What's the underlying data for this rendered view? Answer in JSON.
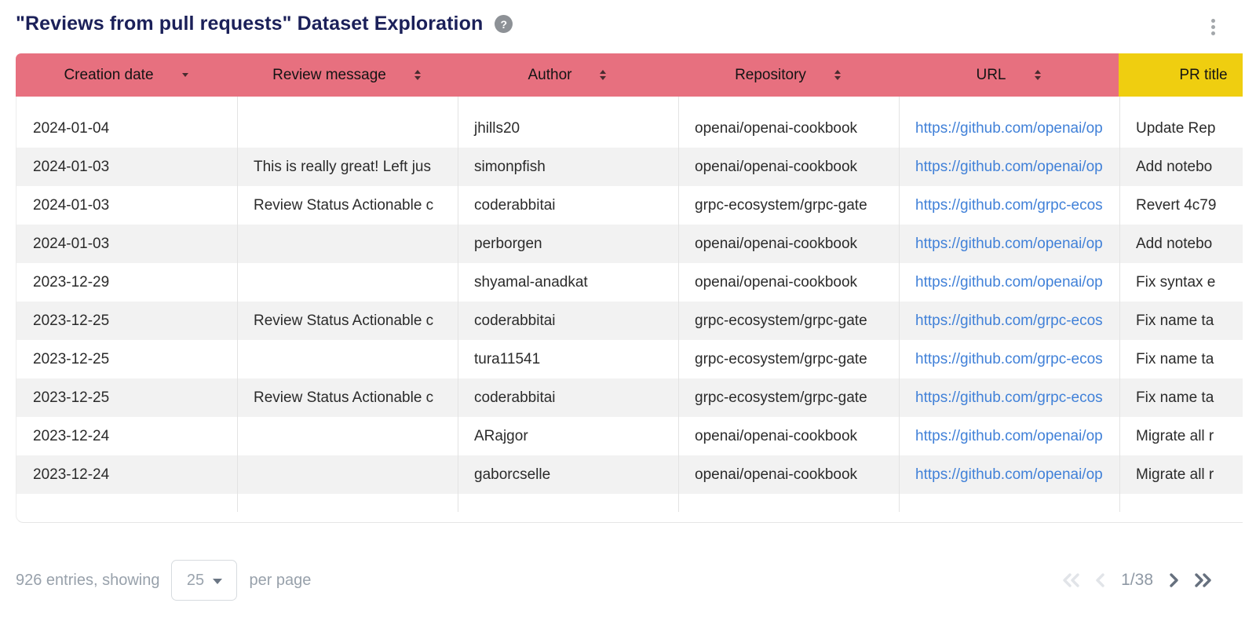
{
  "page": {
    "title": "\"Reviews from pull requests\" Dataset Exploration",
    "help_icon_glyph": "?"
  },
  "colors": {
    "header_pink": "#e7707f",
    "header_yellow": "#efce10",
    "title_navy": "#1b2059",
    "link_blue": "#4181d8",
    "alt_row_gray": "#f2f2f2"
  },
  "table": {
    "columns": [
      {
        "label": "Creation date",
        "sort": "desc"
      },
      {
        "label": "Review message",
        "sort": "both"
      },
      {
        "label": "Author",
        "sort": "both"
      },
      {
        "label": "Repository",
        "sort": "both"
      },
      {
        "label": "URL",
        "sort": "both"
      },
      {
        "label": "PR title",
        "sort": "both"
      }
    ],
    "rows": [
      {
        "date": "2024-01-04",
        "message": "",
        "author": "jhills20",
        "repo": "openai/openai-cookbook",
        "url": "https://github.com/openai/op",
        "pr_title": "Update Rep"
      },
      {
        "date": "2024-01-03",
        "message": "This is really great! Left jus",
        "author": "simonpfish",
        "repo": "openai/openai-cookbook",
        "url": "https://github.com/openai/op",
        "pr_title": "Add notebo"
      },
      {
        "date": "2024-01-03",
        "message": "Review Status Actionable c",
        "author": "coderabbitai",
        "repo": "grpc-ecosystem/grpc-gate",
        "url": "https://github.com/grpc-ecos",
        "pr_title": "Revert 4c79"
      },
      {
        "date": "2024-01-03",
        "message": "",
        "author": "perborgen",
        "repo": "openai/openai-cookbook",
        "url": "https://github.com/openai/op",
        "pr_title": "Add notebo"
      },
      {
        "date": "2023-12-29",
        "message": "",
        "author": "shyamal-anadkat",
        "repo": "openai/openai-cookbook",
        "url": "https://github.com/openai/op",
        "pr_title": "Fix syntax e"
      },
      {
        "date": "2023-12-25",
        "message": "Review Status Actionable c",
        "author": "coderabbitai",
        "repo": "grpc-ecosystem/grpc-gate",
        "url": "https://github.com/grpc-ecos",
        "pr_title": "Fix name ta"
      },
      {
        "date": "2023-12-25",
        "message": "",
        "author": "tura11541",
        "repo": "grpc-ecosystem/grpc-gate",
        "url": "https://github.com/grpc-ecos",
        "pr_title": "Fix name ta"
      },
      {
        "date": "2023-12-25",
        "message": "Review Status Actionable c",
        "author": "coderabbitai",
        "repo": "grpc-ecosystem/grpc-gate",
        "url": "https://github.com/grpc-ecos",
        "pr_title": "Fix name ta"
      },
      {
        "date": "2023-12-24",
        "message": "",
        "author": "ARajgor",
        "repo": "openai/openai-cookbook",
        "url": "https://github.com/openai/op",
        "pr_title": "Migrate all r"
      },
      {
        "date": "2023-12-24",
        "message": "",
        "author": "gaborcselle",
        "repo": "openai/openai-cookbook",
        "url": "https://github.com/openai/op",
        "pr_title": "Migrate all r"
      }
    ]
  },
  "footer": {
    "entries_text": "926 entries, showing",
    "page_size": "25",
    "per_page_text": "per page",
    "page_indicator": "1/38"
  }
}
